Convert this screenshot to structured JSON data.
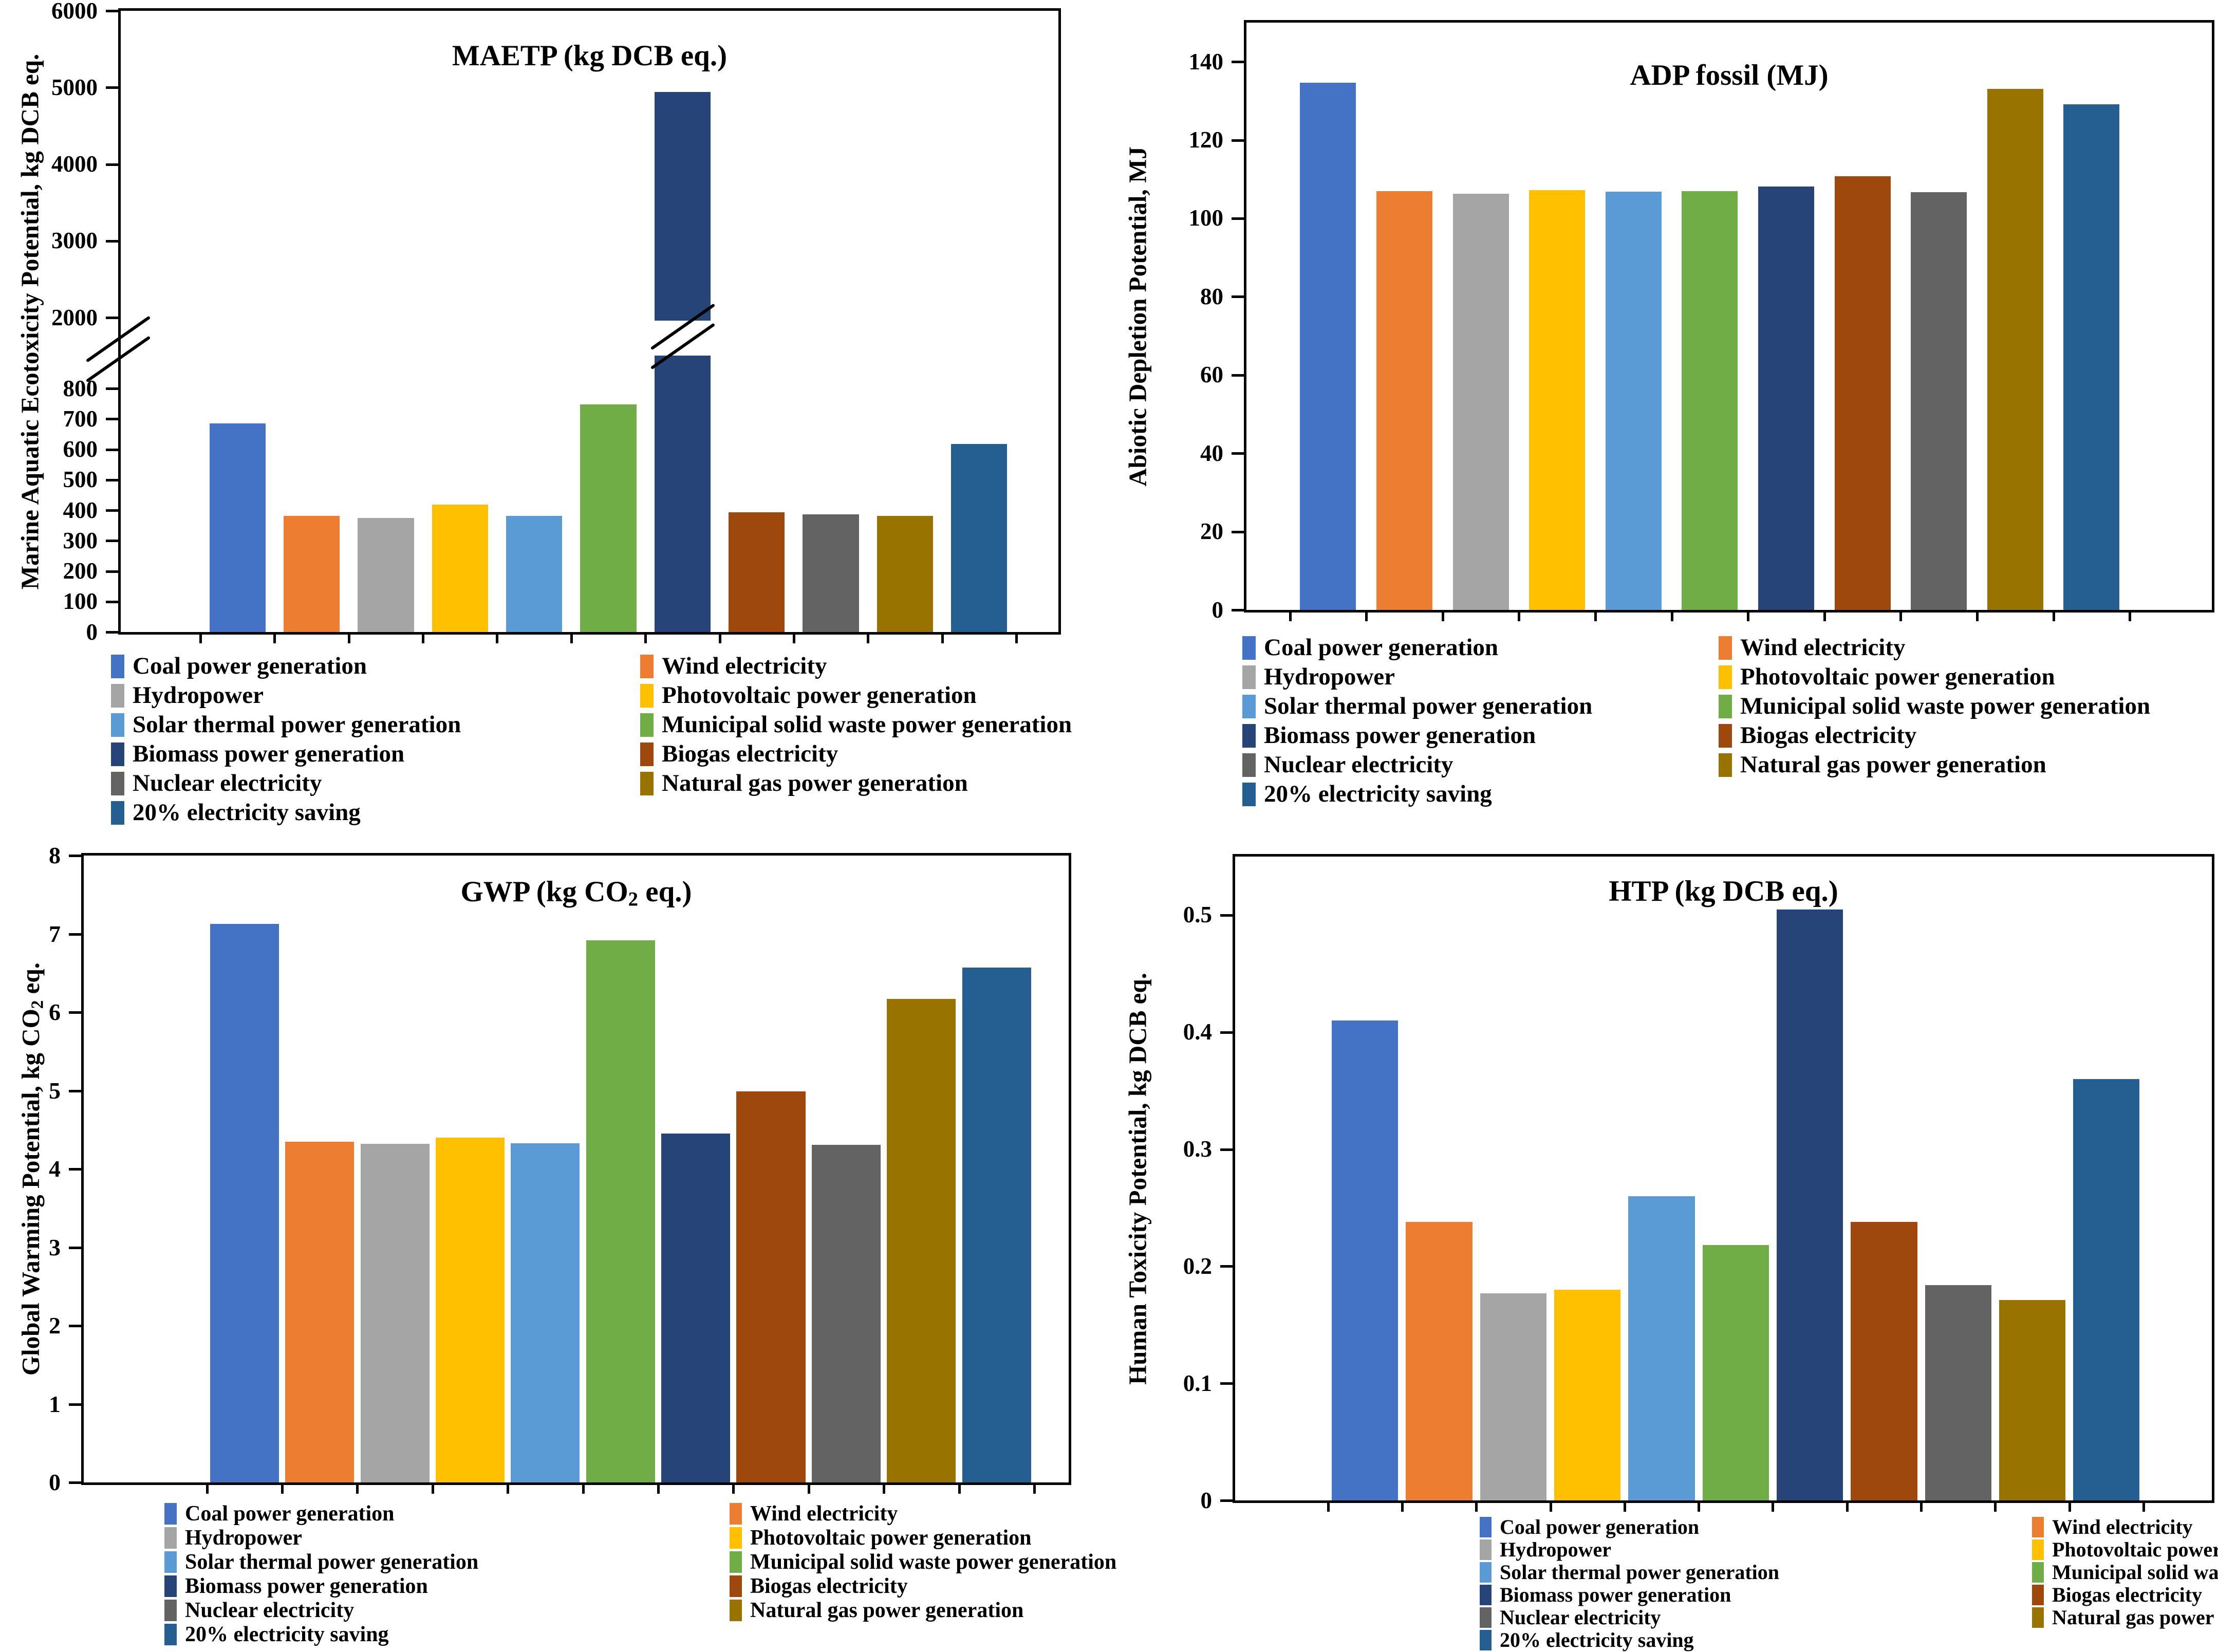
{
  "figure": {
    "background": "#ffffff",
    "panel_count": 4
  },
  "series": [
    {
      "id": "coal",
      "label": "Coal power generation",
      "color": "#4472C4"
    },
    {
      "id": "wind",
      "label": "Wind electricity",
      "color": "#ED7D31"
    },
    {
      "id": "hydro",
      "label": "Hydropower",
      "color": "#A5A5A5"
    },
    {
      "id": "pv",
      "label": "Photovoltaic power generation",
      "color": "#FFC000"
    },
    {
      "id": "solar",
      "label": "Solar thermal power generation",
      "color": "#5B9BD5"
    },
    {
      "id": "msw",
      "label": "Municipal solid waste power generation",
      "color": "#70AD47"
    },
    {
      "id": "biomass",
      "label": "Biomass power generation",
      "color": "#264478"
    },
    {
      "id": "biogas",
      "label": "Biogas electricity",
      "color": "#9E480E"
    },
    {
      "id": "nuclear",
      "label": "Nuclear electricity",
      "color": "#636363"
    },
    {
      "id": "natgas",
      "label": "Natural gas power generation",
      "color": "#997300"
    },
    {
      "id": "saving",
      "label": "20% electricity saving",
      "color": "#255E91"
    }
  ],
  "chart_data": [
    {
      "id": "maetp",
      "type": "bar",
      "title_parts": {
        "pre": "MAETP (kg DCB eq.)",
        "sub": "",
        "post": ""
      },
      "ylabel_parts": {
        "pre": "Marine Aquatic Ecotoxicity Potential, kg DCB eq.",
        "sub": "",
        "post": ""
      },
      "categories": [
        "Coal power generation",
        "Wind electricity",
        "Hydropower",
        "Photovoltaic power generation",
        "Solar thermal power generation",
        "Municipal solid waste power generation",
        "Biomass power generation",
        "Biogas electricity",
        "Nuclear electricity",
        "Natural gas power generation",
        "20% electricity saving"
      ],
      "values": [
        685,
        382,
        375,
        418,
        382,
        748,
        4945,
        394,
        386,
        381,
        617
      ],
      "broken_axis": {
        "upper": {
          "range": [
            2000,
            6000
          ],
          "ticks": [
            6000,
            5000,
            4000,
            3000,
            2000
          ],
          "tick_labels": [
            "6000",
            "5000",
            "4000",
            "3000",
            "2000"
          ]
        },
        "lower": {
          "range": [
            0,
            800
          ],
          "ticks": [
            800,
            700,
            600,
            500,
            400,
            300,
            200,
            100,
            0
          ],
          "tick_labels": [
            "800",
            "700",
            "600",
            "500",
            "400",
            "300",
            "200",
            "100",
            "0"
          ]
        }
      },
      "grid": false,
      "legend_position": "bottom"
    },
    {
      "id": "adp_fossil",
      "type": "bar",
      "title_parts": {
        "pre": "ADP fossil (MJ)",
        "sub": "",
        "post": ""
      },
      "ylabel_parts": {
        "pre": "Abiotic Depletion Potential, MJ",
        "sub": "",
        "post": ""
      },
      "categories": [
        "Coal power generation",
        "Wind electricity",
        "Hydropower",
        "Photovoltaic power generation",
        "Solar thermal power generation",
        "Municipal solid waste power generation",
        "Biomass power generation",
        "Biogas electricity",
        "Nuclear electricity",
        "Natural gas power generation",
        "20% electricity saving"
      ],
      "values": [
        134.7,
        107.0,
        106.3,
        107.2,
        106.8,
        107.0,
        108.2,
        110.8,
        106.7,
        133.1,
        129.1
      ],
      "ylim": [
        0,
        150
      ],
      "ticks": [
        140,
        120,
        100,
        80,
        60,
        40,
        20,
        0
      ],
      "tick_labels": [
        "140",
        "120",
        "100",
        "80",
        "60",
        "40",
        "20",
        "0"
      ],
      "grid": false,
      "legend_position": "bottom"
    },
    {
      "id": "gwp",
      "type": "bar",
      "title_parts": {
        "pre": "GWP (kg CO",
        "sub": "2",
        "post": " eq.)"
      },
      "ylabel_parts": {
        "pre": "Global Warming Potential, kg CO",
        "sub": "2",
        "post": " eq."
      },
      "categories": [
        "Coal power generation",
        "Wind electricity",
        "Hydropower",
        "Photovoltaic power generation",
        "Solar thermal power generation",
        "Municipal solid waste power generation",
        "Biomass power generation",
        "Biogas electricity",
        "Nuclear electricity",
        "Natural gas power generation",
        "20% electricity saving"
      ],
      "values": [
        7.13,
        4.35,
        4.32,
        4.4,
        4.33,
        6.92,
        4.45,
        4.99,
        4.31,
        6.17,
        6.57
      ],
      "ylim": [
        0,
        8
      ],
      "ticks": [
        8,
        7,
        6,
        5,
        4,
        3,
        2,
        1,
        0
      ],
      "tick_labels": [
        "8",
        "7",
        "6",
        "5",
        "4",
        "3",
        "2",
        "1",
        "0"
      ],
      "grid": false,
      "legend_position": "bottom"
    },
    {
      "id": "htp",
      "type": "bar",
      "title_parts": {
        "pre": "HTP (kg DCB eq.)",
        "sub": "",
        "post": ""
      },
      "ylabel_parts": {
        "pre": "Human Toxicity Potential, kg DCB eq.",
        "sub": "",
        "post": ""
      },
      "categories": [
        "Coal power generation",
        "Wind electricity",
        "Hydropower",
        "Photovoltaic power generation",
        "Solar thermal power generation",
        "Municipal solid waste power generation",
        "Biomass power generation",
        "Biogas electricity",
        "Nuclear electricity",
        "Natural gas power generation",
        "20% electricity saving"
      ],
      "values": [
        0.41,
        0.238,
        0.177,
        0.18,
        0.26,
        0.218,
        0.505,
        0.238,
        0.184,
        0.171,
        0.36
      ],
      "ylim": [
        0,
        0.55
      ],
      "ticks": [
        0.5,
        0.4,
        0.3,
        0.2,
        0.1,
        0
      ],
      "tick_labels": [
        "0.5",
        "0.4",
        "0.3",
        "0.2",
        "0.1",
        "0"
      ],
      "grid": false,
      "legend_position": "bottom"
    }
  ]
}
